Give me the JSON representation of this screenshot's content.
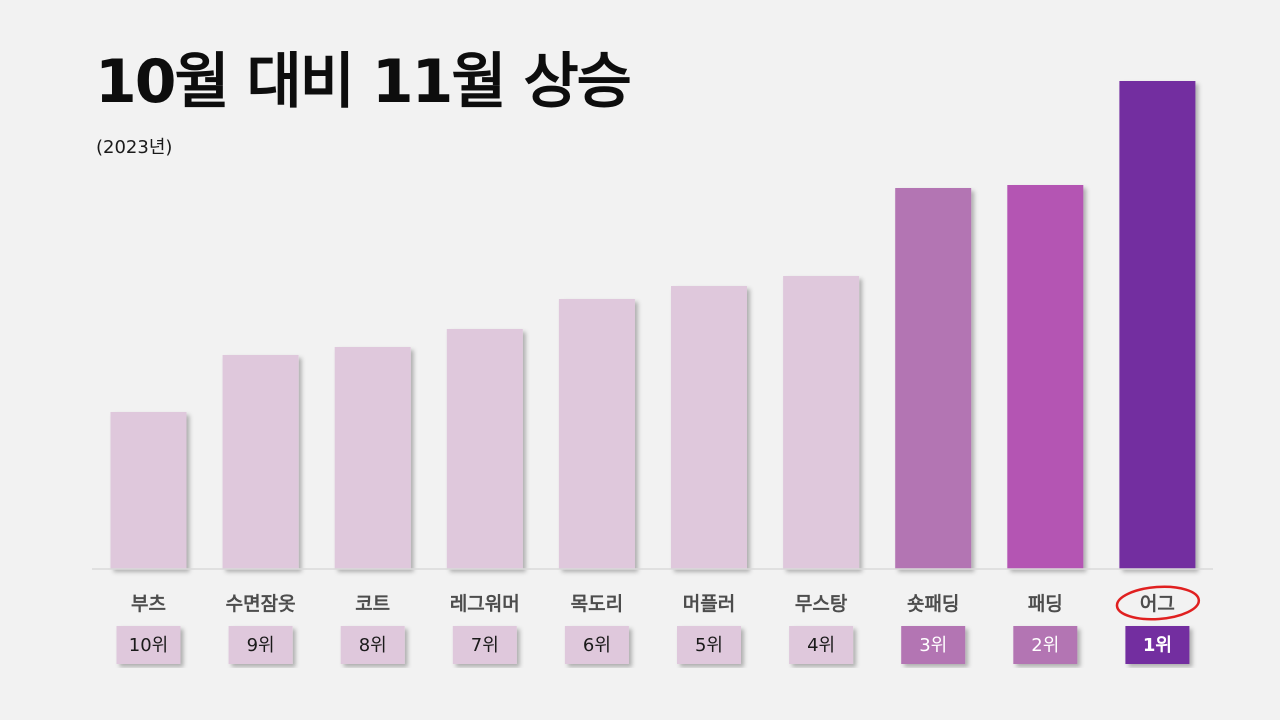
{
  "title": "10월 대비 11월 상승",
  "subtitle": "(2023년)",
  "chart_data": {
    "type": "bar",
    "categories": [
      "부츠",
      "수면잠옷",
      "코트",
      "레그워머",
      "목도리",
      "머플러",
      "무스탕",
      "숏패딩",
      "패딩",
      "어그"
    ],
    "values": [
      157,
      214,
      222,
      240,
      270,
      283,
      293,
      381,
      384,
      488
    ],
    "ranks": [
      "10위",
      "9위",
      "8위",
      "7위",
      "6위",
      "5위",
      "4위",
      "3위",
      "2위",
      "1위"
    ],
    "bar_colors": [
      "#dfc8dc",
      "#dfc8dc",
      "#dfc8dc",
      "#dfc8dc",
      "#dfc8dc",
      "#dfc8dc",
      "#dfc8dc",
      "#b375b3",
      "#b455b3",
      "#732fa0"
    ],
    "rank_box_colors": [
      "#dfc8dc",
      "#dfc8dc",
      "#dfc8dc",
      "#dfc8dc",
      "#dfc8dc",
      "#dfc8dc",
      "#dfc8dc",
      "#b375b3",
      "#b375b3",
      "#732fa0"
    ],
    "rank_text_colors": [
      "#1a1a1a",
      "#1a1a1a",
      "#1a1a1a",
      "#1a1a1a",
      "#1a1a1a",
      "#1a1a1a",
      "#1a1a1a",
      "#ffffff",
      "#ffffff",
      "#ffffff"
    ],
    "highlight_category": "어그",
    "highlight_color": "#e02020",
    "axis_line_color": "#d9d9d9",
    "ylim": [
      0,
      488
    ]
  }
}
